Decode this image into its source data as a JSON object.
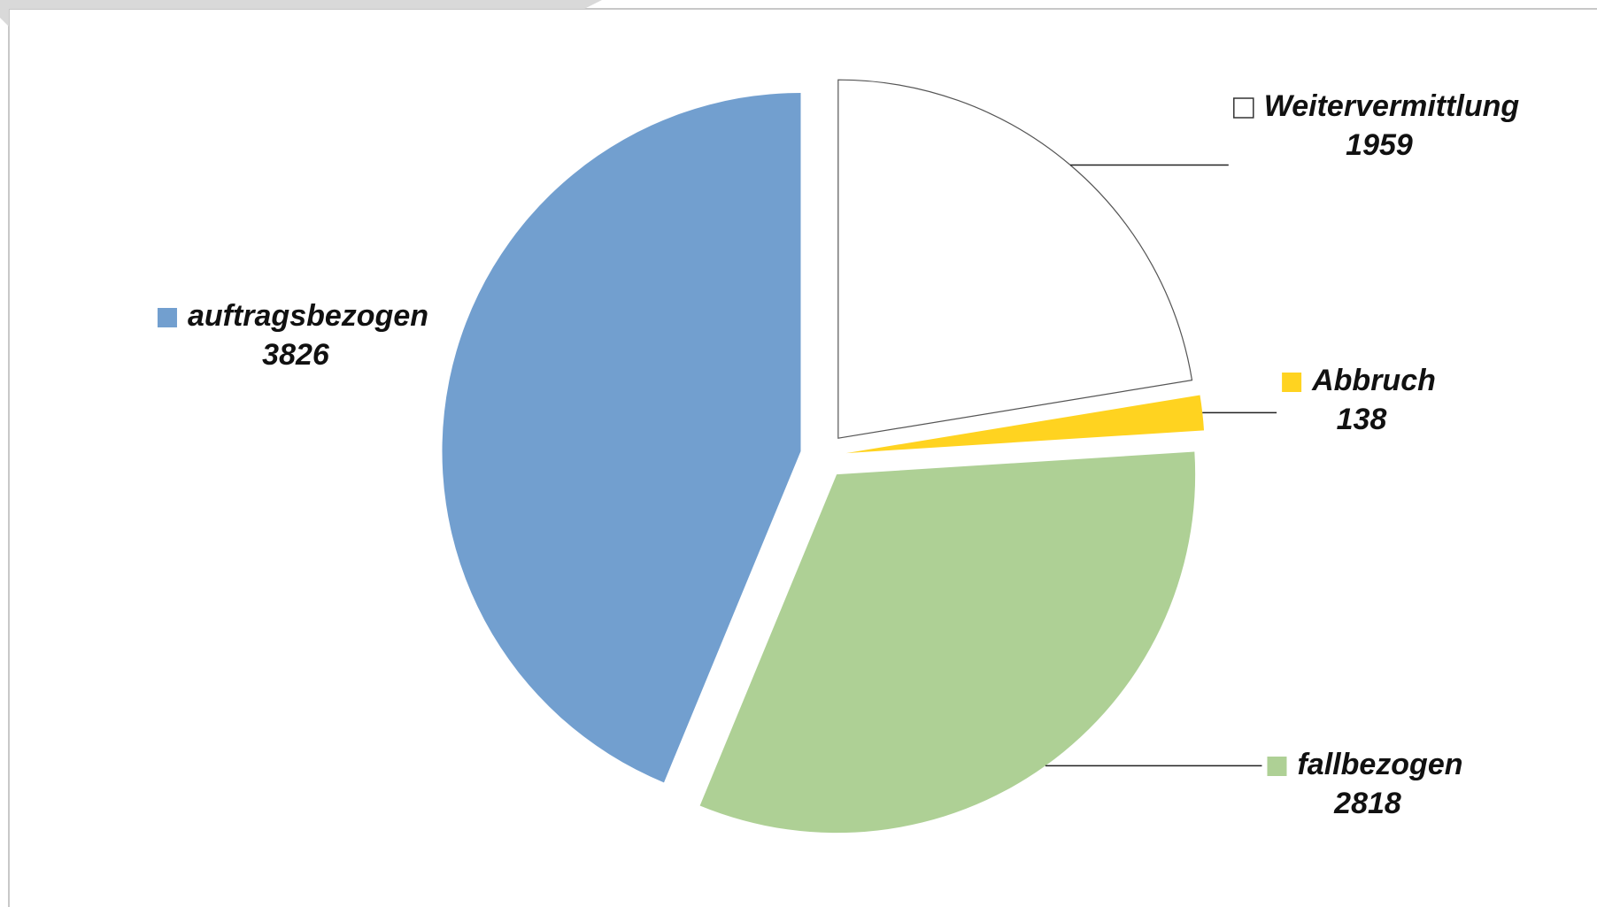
{
  "chart_data": {
    "type": "pie",
    "categories": [
      "Weitervermittlung",
      "Abbruch",
      "fallbezogen",
      "auftragsbezogen"
    ],
    "values": [
      1959,
      138,
      2818,
      3826
    ],
    "colors": [
      "#ffffff",
      "#ffd320",
      "#aed095",
      "#729fcf"
    ]
  }
}
